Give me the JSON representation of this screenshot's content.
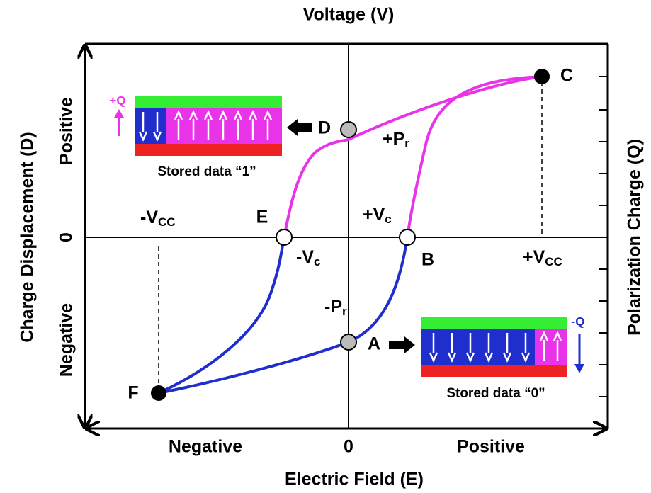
{
  "axes": {
    "top_label": "Voltage (V)",
    "bottom_label": "Electric Field (E)",
    "left_label": "Charge Displacement (D)",
    "right_label": "Polarization Charge (Q)",
    "left_ticks": [
      "Positive",
      "0",
      "Negative"
    ],
    "bottom_ticks": [
      "Negative",
      "0",
      "Positive"
    ]
  },
  "points": {
    "A": "A",
    "B": "B",
    "C": "C",
    "D": "D",
    "E": "E",
    "F": "F"
  },
  "levels": {
    "plus_pr": {
      "text": "+P",
      "sub": "r"
    },
    "minus_pr": {
      "text": "-P",
      "sub": "r"
    },
    "plus_vc": {
      "text": "+V",
      "sub": "c"
    },
    "minus_vc": {
      "text": "-V",
      "sub": "c"
    },
    "plus_vcc": {
      "text": "+V",
      "sub": "CC"
    },
    "minus_vcc": {
      "text": "-V",
      "sub": "CC"
    }
  },
  "insets": {
    "upper": {
      "charge": "+Q",
      "caption": "Stored data “1”"
    },
    "lower": {
      "charge": "-Q",
      "caption": "Stored data “0”"
    }
  }
}
